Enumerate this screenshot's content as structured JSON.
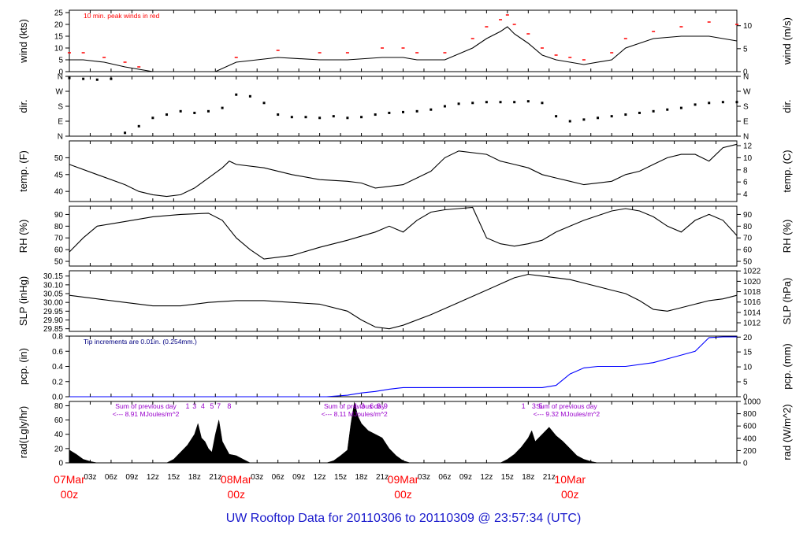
{
  "footer_title": "UW Rooftop Data for 20110306  to  20110309 @ 23:57:34  (UTC)",
  "colors": {
    "axis": "#000000",
    "peak": "#ff0000",
    "precip": "#0000ff",
    "note": "#000080",
    "solar": "#9900cc",
    "date": "#ff0000",
    "title": "#1a1acc"
  },
  "time_axis": {
    "hour_ticks": [
      "03z",
      "06z",
      "09z",
      "12z",
      "15z",
      "18z",
      "21z",
      "03z",
      "06z",
      "09z",
      "12z",
      "15z",
      "18z",
      "21z",
      "03z",
      "06z",
      "09z",
      "12z",
      "15z",
      "18z",
      "21z"
    ],
    "day_labels": [
      {
        "date": "07Mar",
        "hour": "00z"
      },
      {
        "date": "08Mar",
        "hour": "00z"
      },
      {
        "date": "09Mar",
        "hour": "00z"
      },
      {
        "date": "10Mar",
        "hour": "00z"
      }
    ]
  },
  "chart_data": [
    {
      "type": "line",
      "id": "wind",
      "ylabel": "wind (kts)",
      "ylabel_right": "wind (m/s)",
      "ylim": [
        0,
        26
      ],
      "yticks": [
        0,
        5,
        10,
        15,
        20,
        25
      ],
      "right_ticks": [
        {
          "label": "0",
          "at": 0
        },
        {
          "label": "5",
          "at": 9.72
        },
        {
          "label": "10",
          "at": 19.44
        }
      ],
      "annotation": "10 min. peak winds in red",
      "series": [
        {
          "role": "wind",
          "x": [
            0,
            2,
            5,
            8,
            10,
            12,
            14,
            18,
            21,
            24,
            30,
            36,
            40,
            45,
            48,
            50,
            54,
            58,
            60,
            62,
            63,
            64,
            66,
            68,
            70,
            72,
            74,
            78,
            80,
            84,
            88,
            92,
            96
          ],
          "y": [
            5,
            5,
            4,
            2,
            1,
            0,
            0,
            0,
            0,
            4,
            6,
            5,
            5,
            6,
            6,
            5,
            5,
            10,
            14,
            17,
            19,
            16,
            12,
            7,
            5,
            4,
            3,
            5,
            10,
            14,
            15,
            15,
            13
          ]
        },
        {
          "role": "peak",
          "x": [
            0,
            2,
            5,
            8,
            10,
            24,
            30,
            36,
            40,
            45,
            48,
            50,
            54,
            58,
            60,
            62,
            63,
            64,
            66,
            68,
            70,
            72,
            74,
            78,
            80,
            84,
            88,
            92,
            96
          ],
          "y": [
            8,
            8,
            6,
            4,
            2,
            6,
            9,
            8,
            8,
            10,
            10,
            8,
            8,
            14,
            19,
            22,
            24,
            20,
            16,
            10,
            7,
            6,
            5,
            8,
            14,
            17,
            19,
            21,
            20
          ]
        }
      ]
    },
    {
      "type": "scatter",
      "id": "dir",
      "ylabel": "dir.",
      "ylabel_right": "dir.",
      "ylim": [
        0,
        360
      ],
      "yticks": [
        {
          "label": "N",
          "at": 0
        },
        {
          "label": "E",
          "at": 90
        },
        {
          "label": "S",
          "at": 180
        },
        {
          "label": "W",
          "at": 270
        },
        {
          "label": "N",
          "at": 360
        }
      ],
      "right_ticks": [
        {
          "label": "N",
          "at": 0
        },
        {
          "label": "E",
          "at": 90
        },
        {
          "label": "S",
          "at": 180
        },
        {
          "label": "W",
          "at": 270
        },
        {
          "label": "N",
          "at": 360
        }
      ],
      "series": [
        {
          "role": "dir",
          "x": [
            0,
            2,
            4,
            6,
            8,
            10,
            12,
            14,
            16,
            18,
            20,
            22,
            24,
            26,
            28,
            30,
            32,
            34,
            36,
            38,
            40,
            42,
            44,
            46,
            48,
            50,
            52,
            54,
            56,
            58,
            60,
            62,
            64,
            66,
            68,
            70,
            72,
            74,
            76,
            78,
            80,
            82,
            84,
            86,
            88,
            90,
            92,
            94,
            96
          ],
          "y": [
            350,
            345,
            340,
            345,
            20,
            60,
            110,
            130,
            150,
            140,
            150,
            170,
            250,
            240,
            200,
            130,
            115,
            115,
            110,
            120,
            110,
            115,
            130,
            140,
            145,
            150,
            160,
            180,
            195,
            200,
            205,
            205,
            205,
            210,
            200,
            120,
            90,
            100,
            110,
            120,
            130,
            140,
            150,
            160,
            170,
            190,
            200,
            205,
            205
          ]
        }
      ]
    },
    {
      "type": "line",
      "id": "temp",
      "ylabel": "temp. (F)",
      "ylabel_right": "temp. (C)",
      "ylim": [
        37,
        55
      ],
      "yticks": [
        40,
        45,
        50
      ],
      "right_ticks": [
        {
          "label": "4",
          "at": 39.2
        },
        {
          "label": "6",
          "at": 42.8
        },
        {
          "label": "8",
          "at": 46.4
        },
        {
          "label": "10",
          "at": 50
        },
        {
          "label": "12",
          "at": 53.6
        }
      ],
      "series": [
        {
          "role": "temp",
          "x": [
            0,
            4,
            8,
            10,
            12,
            14,
            16,
            18,
            20,
            22,
            23,
            24,
            28,
            32,
            36,
            40,
            42,
            44,
            48,
            52,
            54,
            56,
            60,
            62,
            64,
            66,
            68,
            70,
            72,
            74,
            78,
            80,
            82,
            84,
            86,
            88,
            90,
            92,
            94,
            96
          ],
          "y": [
            48,
            45,
            42,
            40,
            39,
            38.5,
            39,
            41,
            44,
            47,
            49,
            48,
            47,
            45,
            43.5,
            43,
            42.5,
            41,
            42,
            46,
            50,
            52,
            51,
            49,
            48,
            47,
            45,
            44,
            43,
            42,
            43,
            45,
            46,
            48,
            50,
            51,
            51,
            49,
            53,
            54
          ]
        }
      ]
    },
    {
      "type": "line",
      "id": "rh",
      "ylabel": "RH (%)",
      "ylabel_right": "RH (%)",
      "ylim": [
        46,
        97
      ],
      "yticks": [
        50,
        60,
        70,
        80,
        90
      ],
      "right_ticks": [
        {
          "label": "50",
          "at": 50
        },
        {
          "label": "60",
          "at": 60
        },
        {
          "label": "70",
          "at": 70
        },
        {
          "label": "80",
          "at": 80
        },
        {
          "label": "90",
          "at": 90
        }
      ],
      "series": [
        {
          "role": "rh",
          "x": [
            0,
            2,
            4,
            8,
            12,
            16,
            20,
            22,
            24,
            26,
            28,
            32,
            36,
            40,
            44,
            46,
            48,
            50,
            52,
            54,
            56,
            58,
            60,
            62,
            64,
            66,
            68,
            70,
            72,
            74,
            78,
            80,
            82,
            84,
            86,
            88,
            90,
            92,
            94,
            96
          ],
          "y": [
            58,
            70,
            80,
            84,
            88,
            90,
            91,
            85,
            70,
            60,
            52,
            55,
            62,
            68,
            75,
            80,
            75,
            85,
            92,
            94,
            95,
            96,
            70,
            65,
            63,
            65,
            68,
            75,
            80,
            85,
            93,
            95,
            93,
            88,
            80,
            75,
            85,
            90,
            85,
            72
          ]
        }
      ]
    },
    {
      "type": "line",
      "id": "slp",
      "ylabel": "SLP (inHg)",
      "ylabel_right": "SLP (hPa)",
      "ylim": [
        29.835,
        30.18
      ],
      "yticks": [
        29.85,
        29.9,
        29.95,
        30.0,
        30.05,
        30.1,
        30.15
      ],
      "ytick_labels": [
        "29.85",
        "29.90",
        "29.95",
        "30.00",
        "30.05",
        "30.10",
        "30.15"
      ],
      "right_ticks": [
        {
          "label": "1012",
          "at": 29.884
        },
        {
          "label": "1014",
          "at": 29.943
        },
        {
          "label": "1016",
          "at": 30.002
        },
        {
          "label": "1018",
          "at": 30.061
        },
        {
          "label": "1020",
          "at": 30.12
        },
        {
          "label": "1022",
          "at": 30.179
        }
      ],
      "series": [
        {
          "role": "slp",
          "x": [
            0,
            4,
            8,
            12,
            16,
            20,
            24,
            28,
            32,
            36,
            40,
            42,
            44,
            46,
            48,
            52,
            56,
            60,
            64,
            66,
            68,
            70,
            72,
            74,
            78,
            80,
            82,
            84,
            86,
            88,
            90,
            92,
            94,
            96
          ],
          "y": [
            30.04,
            30.02,
            30.0,
            29.98,
            29.98,
            30.0,
            30.01,
            30.01,
            30.0,
            29.99,
            29.95,
            29.9,
            29.86,
            29.85,
            29.87,
            29.93,
            30.0,
            30.07,
            30.14,
            30.16,
            30.15,
            30.14,
            30.13,
            30.11,
            30.07,
            30.05,
            30.01,
            29.96,
            29.95,
            29.97,
            29.99,
            30.01,
            30.02,
            30.04
          ]
        }
      ]
    },
    {
      "type": "line",
      "id": "pcp",
      "ylabel": "pcp. (in)",
      "ylabel_right": "pcp. (mm)",
      "ylim": [
        0,
        0.8
      ],
      "yticks": [
        0,
        0.2,
        0.4,
        0.6,
        0.8
      ],
      "ytick_labels": [
        "0.0",
        "0.2",
        "0.4",
        "0.6",
        "0.8"
      ],
      "right_ticks": [
        {
          "label": "0",
          "at": 0
        },
        {
          "label": "5",
          "at": 0.197
        },
        {
          "label": "10",
          "at": 0.394
        },
        {
          "label": "15",
          "at": 0.591
        },
        {
          "label": "20",
          "at": 0.787
        }
      ],
      "annotation": "Tip increments are 0.01in. (0.254mm.)",
      "series": [
        {
          "role": "pcp",
          "x": [
            0,
            37,
            40,
            42,
            44,
            46,
            48,
            50,
            52,
            56,
            60,
            64,
            68,
            70,
            72,
            74,
            76,
            78,
            80,
            84,
            86,
            88,
            90,
            92,
            94,
            96
          ],
          "y": [
            0,
            0,
            0.02,
            0.05,
            0.07,
            0.1,
            0.12,
            0.12,
            0.12,
            0.12,
            0.12,
            0.12,
            0.12,
            0.15,
            0.3,
            0.38,
            0.4,
            0.4,
            0.4,
            0.45,
            0.5,
            0.55,
            0.6,
            0.78,
            0.79,
            0.79
          ]
        }
      ]
    },
    {
      "type": "area",
      "id": "rad",
      "ylabel": "rad(Lgly/hr)",
      "ylabel_right": "rad (W/m^2)",
      "ylim": [
        0,
        86
      ],
      "yticks": [
        0,
        20,
        40,
        60,
        80
      ],
      "right_ticks": [
        {
          "label": "0",
          "at": 0
        },
        {
          "label": "200",
          "at": 17.2
        },
        {
          "label": "400",
          "at": 34.4
        },
        {
          "label": "600",
          "at": 51.6
        },
        {
          "label": "800",
          "at": 68.8
        },
        {
          "label": "1000",
          "at": 86
        }
      ],
      "labels": [
        {
          "at": 11.0,
          "line1": "Sum of previous day",
          "line2": "<--- 8.91 MJoules/m^2"
        },
        {
          "at": 41.0,
          "line1": "Sum of previous day",
          "line2": "<--- 8.11 MJoules/m^2"
        },
        {
          "at": 71.5,
          "line1": "Sum of previous day",
          "line2": "<--- 9.32 MJoules/m^2"
        }
      ],
      "hour_marks": [
        {
          "at": 17.0,
          "label": "1"
        },
        {
          "at": 18.0,
          "label": "3"
        },
        {
          "at": 19.2,
          "label": "4"
        },
        {
          "at": 20.5,
          "label": "5"
        },
        {
          "at": 21.5,
          "label": "7"
        },
        {
          "at": 23.0,
          "label": "8"
        },
        {
          "at": 41.2,
          "label": "1"
        },
        {
          "at": 42.2,
          "label": "3"
        },
        {
          "at": 43.5,
          "label": "6"
        },
        {
          "at": 44.5,
          "label": "8"
        },
        {
          "at": 45.5,
          "label": "9"
        },
        {
          "at": 65.3,
          "label": "1"
        },
        {
          "at": 66.8,
          "label": "3"
        },
        {
          "at": 67.8,
          "label": "5"
        }
      ],
      "series": [
        {
          "role": "rad",
          "x": [
            0,
            1,
            2,
            3,
            4,
            14,
            15,
            16,
            17,
            18,
            18.5,
            19,
            19.5,
            20,
            20.5,
            21,
            21.5,
            22,
            23,
            24,
            25,
            26,
            37,
            38,
            39,
            40,
            40.5,
            41,
            41.5,
            42,
            43,
            44,
            45,
            46,
            47,
            48,
            49,
            50,
            62,
            63,
            64,
            65,
            66,
            66.5,
            67,
            68,
            68.5,
            69,
            70,
            71,
            72,
            73,
            74,
            75,
            76,
            96
          ],
          "y": [
            18,
            12,
            5,
            2,
            0,
            0,
            5,
            15,
            25,
            40,
            55,
            35,
            30,
            20,
            15,
            40,
            60,
            30,
            12,
            10,
            5,
            0,
            0,
            3,
            10,
            18,
            55,
            85,
            65,
            55,
            45,
            40,
            35,
            20,
            10,
            3,
            0,
            0,
            0,
            5,
            12,
            22,
            35,
            45,
            30,
            40,
            45,
            50,
            38,
            30,
            20,
            10,
            5,
            2,
            0,
            0
          ]
        }
      ]
    }
  ]
}
